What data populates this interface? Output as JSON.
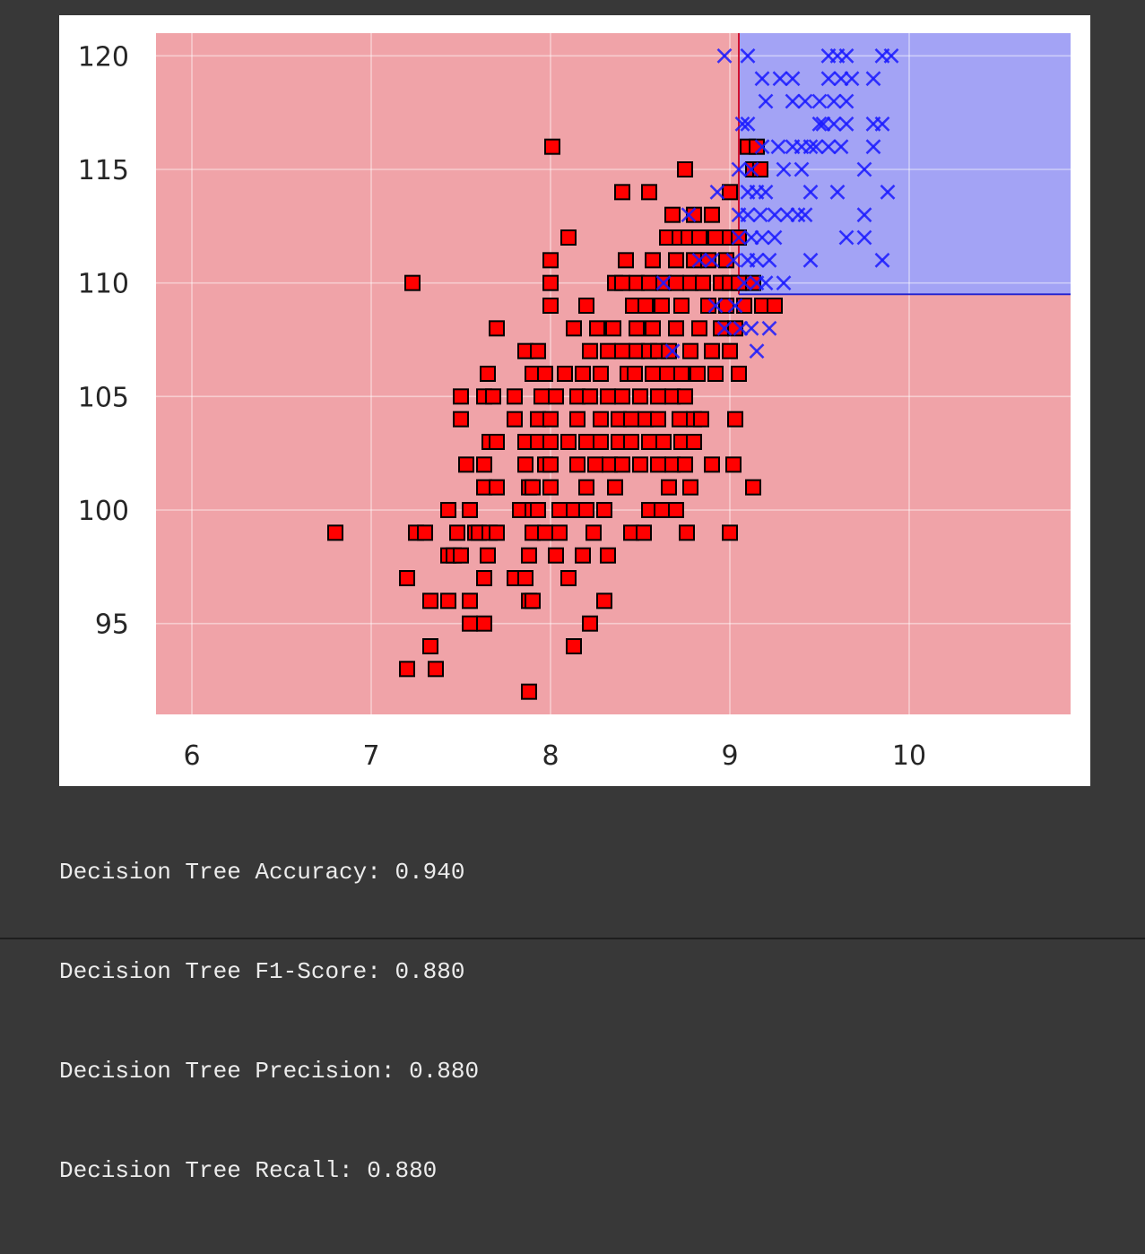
{
  "chart_data": {
    "type": "scatter",
    "title": "",
    "xlabel": "",
    "ylabel": "",
    "xlim": [
      5.8,
      10.9
    ],
    "ylim": [
      91,
      121
    ],
    "x_ticks": [
      6,
      7,
      8,
      9,
      10
    ],
    "y_ticks": [
      95,
      100,
      105,
      110,
      115,
      120
    ],
    "x_tick_labels": [
      "6",
      "7",
      "8",
      "9",
      "10"
    ],
    "y_tick_labels": [
      "95",
      "100",
      "105",
      "110",
      "115",
      "120"
    ],
    "grid": true,
    "legend": "none",
    "decision_regions": [
      {
        "class": 0,
        "color": "#f0a3a8",
        "x_range": [
          5.8,
          10.9
        ],
        "y_range": [
          91,
          121
        ]
      },
      {
        "class": 1,
        "color": "#a3a3f5",
        "x_range": [
          9.05,
          10.9
        ],
        "y_range": [
          109.5,
          121
        ]
      }
    ],
    "series": [
      {
        "class": 0,
        "marker": "square",
        "color": "#ff0000",
        "edge_color": "#000000",
        "points": [
          [
            6.8,
            99
          ],
          [
            7.2,
            93
          ],
          [
            7.2,
            97
          ],
          [
            7.23,
            110
          ],
          [
            7.25,
            99
          ],
          [
            7.3,
            99
          ],
          [
            7.33,
            94
          ],
          [
            7.33,
            96
          ],
          [
            7.36,
            93
          ],
          [
            7.43,
            96
          ],
          [
            7.43,
            98
          ],
          [
            7.43,
            100
          ],
          [
            7.46,
            98
          ],
          [
            7.48,
            99
          ],
          [
            7.5,
            104
          ],
          [
            7.5,
            98
          ],
          [
            7.5,
            105
          ],
          [
            7.53,
            102
          ],
          [
            7.55,
            96
          ],
          [
            7.55,
            100
          ],
          [
            7.55,
            95
          ],
          [
            7.58,
            99
          ],
          [
            7.6,
            99
          ],
          [
            7.63,
            102
          ],
          [
            7.63,
            101
          ],
          [
            7.63,
            105
          ],
          [
            7.63,
            97
          ],
          [
            7.63,
            95
          ],
          [
            7.65,
            106
          ],
          [
            7.65,
            98
          ],
          [
            7.66,
            99
          ],
          [
            7.66,
            103
          ],
          [
            7.68,
            105
          ],
          [
            7.7,
            101
          ],
          [
            7.7,
            99
          ],
          [
            7.7,
            103
          ],
          [
            7.7,
            108
          ],
          [
            7.8,
            104
          ],
          [
            7.8,
            97
          ],
          [
            7.8,
            105
          ],
          [
            7.83,
            100
          ],
          [
            7.86,
            103
          ],
          [
            7.86,
            97
          ],
          [
            7.86,
            107
          ],
          [
            7.86,
            102
          ],
          [
            7.88,
            96
          ],
          [
            7.88,
            98
          ],
          [
            7.88,
            101
          ],
          [
            7.88,
            92
          ],
          [
            7.9,
            101
          ],
          [
            7.9,
            99
          ],
          [
            7.9,
            106
          ],
          [
            7.9,
            100
          ],
          [
            7.9,
            96
          ],
          [
            7.93,
            104
          ],
          [
            7.93,
            107
          ],
          [
            7.93,
            103
          ],
          [
            7.93,
            100
          ],
          [
            7.95,
            105
          ],
          [
            7.97,
            102
          ],
          [
            7.97,
            99
          ],
          [
            7.97,
            106
          ],
          [
            8.0,
            111
          ],
          [
            8.0,
            109
          ],
          [
            8.0,
            110
          ],
          [
            8.0,
            103
          ],
          [
            8.0,
            101
          ],
          [
            8.0,
            102
          ],
          [
            8.0,
            104
          ],
          [
            8.01,
            116
          ],
          [
            8.03,
            98
          ],
          [
            8.03,
            105
          ],
          [
            8.05,
            100
          ],
          [
            8.05,
            99
          ],
          [
            8.08,
            106
          ],
          [
            8.1,
            97
          ],
          [
            8.1,
            112
          ],
          [
            8.1,
            103
          ],
          [
            8.13,
            100
          ],
          [
            8.13,
            94
          ],
          [
            8.13,
            108
          ],
          [
            8.15,
            104
          ],
          [
            8.15,
            102
          ],
          [
            8.15,
            105
          ],
          [
            8.18,
            98
          ],
          [
            8.18,
            106
          ],
          [
            8.2,
            109
          ],
          [
            8.2,
            103
          ],
          [
            8.2,
            101
          ],
          [
            8.2,
            100
          ],
          [
            8.22,
            105
          ],
          [
            8.22,
            107
          ],
          [
            8.22,
            95
          ],
          [
            8.24,
            99
          ],
          [
            8.25,
            102
          ],
          [
            8.26,
            108
          ],
          [
            8.28,
            104
          ],
          [
            8.28,
            103
          ],
          [
            8.28,
            106
          ],
          [
            8.3,
            100
          ],
          [
            8.3,
            96
          ],
          [
            8.32,
            107
          ],
          [
            8.32,
            105
          ],
          [
            8.32,
            98
          ],
          [
            8.33,
            102
          ],
          [
            8.35,
            108
          ],
          [
            8.36,
            110
          ],
          [
            8.36,
            101
          ],
          [
            8.38,
            103
          ],
          [
            8.38,
            104
          ],
          [
            8.4,
            105
          ],
          [
            8.4,
            107
          ],
          [
            8.4,
            110
          ],
          [
            8.4,
            114
          ],
          [
            8.4,
            102
          ],
          [
            8.42,
            111
          ],
          [
            8.43,
            106
          ],
          [
            8.45,
            99
          ],
          [
            8.45,
            103
          ],
          [
            8.45,
            104
          ],
          [
            8.46,
            109
          ],
          [
            8.47,
            106
          ],
          [
            8.48,
            107
          ],
          [
            8.48,
            110
          ],
          [
            8.48,
            108
          ],
          [
            8.5,
            102
          ],
          [
            8.5,
            105
          ],
          [
            8.52,
            99
          ],
          [
            8.53,
            104
          ],
          [
            8.53,
            109
          ],
          [
            8.55,
            110
          ],
          [
            8.55,
            107
          ],
          [
            8.55,
            114
          ],
          [
            8.55,
            103
          ],
          [
            8.55,
            100
          ],
          [
            8.57,
            106
          ],
          [
            8.57,
            111
          ],
          [
            8.57,
            108
          ],
          [
            8.6,
            102
          ],
          [
            8.6,
            105
          ],
          [
            8.6,
            107
          ],
          [
            8.6,
            104
          ],
          [
            8.62,
            100
          ],
          [
            8.62,
            109
          ],
          [
            8.63,
            103
          ],
          [
            8.63,
            110
          ],
          [
            8.65,
            112
          ],
          [
            8.65,
            106
          ],
          [
            8.66,
            101
          ],
          [
            8.66,
            107
          ],
          [
            8.68,
            113
          ],
          [
            8.68,
            102
          ],
          [
            8.68,
            105
          ],
          [
            8.7,
            110
          ],
          [
            8.7,
            100
          ],
          [
            8.7,
            111
          ],
          [
            8.7,
            108
          ],
          [
            8.72,
            104
          ],
          [
            8.72,
            112
          ],
          [
            8.73,
            103
          ],
          [
            8.73,
            109
          ],
          [
            8.73,
            106
          ],
          [
            8.75,
            102
          ],
          [
            8.75,
            115
          ],
          [
            8.75,
            105
          ],
          [
            8.76,
            99
          ],
          [
            8.77,
            112
          ],
          [
            8.78,
            110
          ],
          [
            8.78,
            107
          ],
          [
            8.78,
            101
          ],
          [
            8.8,
            111
          ],
          [
            8.8,
            104
          ],
          [
            8.8,
            113
          ],
          [
            8.8,
            103
          ],
          [
            8.82,
            106
          ],
          [
            8.83,
            108
          ],
          [
            8.83,
            112
          ],
          [
            8.84,
            104
          ],
          [
            8.85,
            110
          ],
          [
            8.88,
            109
          ],
          [
            8.88,
            111
          ],
          [
            8.9,
            113
          ],
          [
            8.9,
            107
          ],
          [
            8.9,
            102
          ],
          [
            8.92,
            112
          ],
          [
            8.92,
            106
          ],
          [
            8.95,
            110
          ],
          [
            8.95,
            108
          ],
          [
            8.98,
            111
          ],
          [
            8.98,
            109
          ],
          [
            9.0,
            112
          ],
          [
            9.0,
            107
          ],
          [
            9.0,
            110
          ],
          [
            9.0,
            114
          ],
          [
            9.0,
            99
          ],
          [
            9.02,
            102
          ],
          [
            9.03,
            104
          ],
          [
            9.03,
            108
          ],
          [
            9.05,
            106
          ],
          [
            9.05,
            110
          ],
          [
            9.05,
            112
          ],
          [
            9.08,
            109
          ],
          [
            9.1,
            116
          ],
          [
            9.13,
            101
          ],
          [
            9.13,
            110
          ],
          [
            9.13,
            115
          ],
          [
            9.15,
            116
          ],
          [
            9.17,
            115
          ],
          [
            9.18,
            109
          ],
          [
            9.25,
            109
          ]
        ]
      },
      {
        "class": 1,
        "marker": "x",
        "color": "#1a1aff",
        "points": [
          [
            8.63,
            110
          ],
          [
            8.68,
            107
          ],
          [
            8.77,
            113
          ],
          [
            8.83,
            111
          ],
          [
            8.9,
            111
          ],
          [
            8.92,
            109
          ],
          [
            8.93,
            114
          ],
          [
            8.97,
            120
          ],
          [
            8.97,
            108
          ],
          [
            9.02,
            111
          ],
          [
            9.03,
            109
          ],
          [
            9.05,
            113
          ],
          [
            9.05,
            112
          ],
          [
            9.05,
            115
          ],
          [
            9.06,
            108
          ],
          [
            9.07,
            117
          ],
          [
            9.08,
            110
          ],
          [
            9.1,
            111
          ],
          [
            9.1,
            114
          ],
          [
            9.1,
            113
          ],
          [
            9.1,
            117
          ],
          [
            9.1,
            120
          ],
          [
            9.12,
            112
          ],
          [
            9.12,
            115
          ],
          [
            9.12,
            108
          ],
          [
            9.15,
            110
          ],
          [
            9.15,
            114
          ],
          [
            9.15,
            107
          ],
          [
            9.15,
            111
          ],
          [
            9.17,
            113
          ],
          [
            9.18,
            112
          ],
          [
            9.18,
            119
          ],
          [
            9.18,
            116
          ],
          [
            9.2,
            118
          ],
          [
            9.2,
            114
          ],
          [
            9.2,
            110
          ],
          [
            9.22,
            108
          ],
          [
            9.22,
            111
          ],
          [
            9.25,
            112
          ],
          [
            9.25,
            113
          ],
          [
            9.27,
            116
          ],
          [
            9.28,
            119
          ],
          [
            9.3,
            115
          ],
          [
            9.3,
            110
          ],
          [
            9.32,
            113
          ],
          [
            9.35,
            116
          ],
          [
            9.35,
            118
          ],
          [
            9.35,
            119
          ],
          [
            9.38,
            113
          ],
          [
            9.4,
            115
          ],
          [
            9.4,
            116
          ],
          [
            9.42,
            118
          ],
          [
            9.42,
            113
          ],
          [
            9.45,
            114
          ],
          [
            9.45,
            116
          ],
          [
            9.45,
            111
          ],
          [
            9.48,
            116
          ],
          [
            9.5,
            117
          ],
          [
            9.5,
            118
          ],
          [
            9.52,
            117
          ],
          [
            9.55,
            120
          ],
          [
            9.55,
            119
          ],
          [
            9.55,
            116
          ],
          [
            9.58,
            118
          ],
          [
            9.58,
            117
          ],
          [
            9.6,
            120
          ],
          [
            9.6,
            114
          ],
          [
            9.62,
            116
          ],
          [
            9.62,
            119
          ],
          [
            9.65,
            118
          ],
          [
            9.65,
            117
          ],
          [
            9.65,
            120
          ],
          [
            9.68,
            119
          ],
          [
            9.65,
            112
          ],
          [
            9.75,
            115
          ],
          [
            9.75,
            113
          ],
          [
            9.75,
            112
          ],
          [
            9.8,
            117
          ],
          [
            9.8,
            116
          ],
          [
            9.8,
            119
          ],
          [
            9.85,
            120
          ],
          [
            9.85,
            117
          ],
          [
            9.88,
            114
          ],
          [
            9.85,
            111
          ],
          [
            9.9,
            120
          ]
        ]
      }
    ]
  },
  "metrics": [
    "Decision Tree Accuracy: 0.940",
    "Decision Tree F1-Score: 0.880",
    "Decision Tree Precision: 0.880",
    "Decision Tree Recall: 0.880"
  ]
}
